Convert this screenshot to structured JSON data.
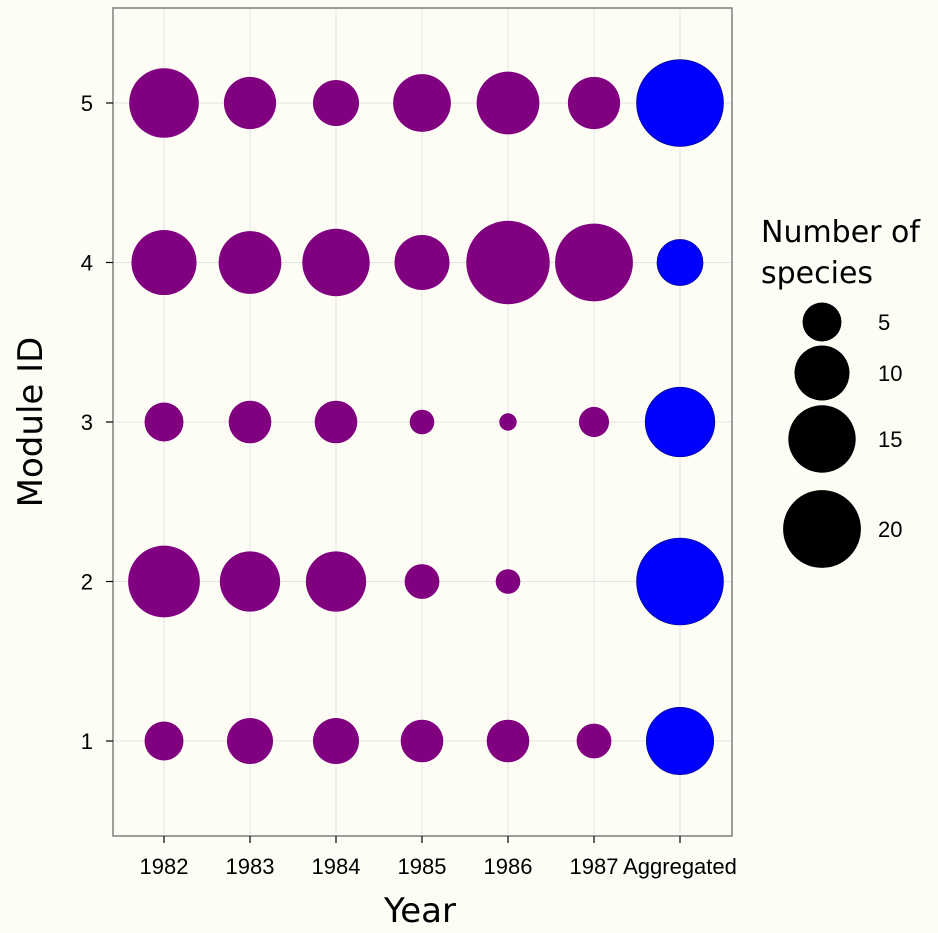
{
  "chart_data": {
    "type": "scatter",
    "title": "",
    "xlabel": "Year",
    "ylabel": "Module ID",
    "categories": [
      "1982",
      "1983",
      "1984",
      "1985",
      "1986",
      "1987",
      "Aggregated"
    ],
    "y_ticks": [
      "1",
      "2",
      "3",
      "4",
      "5"
    ],
    "ylim": [
      0.4,
      5.6
    ],
    "grid": true,
    "colors": {
      "year": "#800080",
      "aggregated": "#0000ff",
      "legend": "#000000"
    },
    "size_legend": {
      "title_lines": [
        "Number of",
        "species"
      ],
      "placement": "right",
      "values": [
        5,
        10,
        15,
        20
      ]
    },
    "points": [
      {
        "x": "1982",
        "y": 1,
        "size": 5
      },
      {
        "x": "1983",
        "y": 1,
        "size": 7
      },
      {
        "x": "1984",
        "y": 1,
        "size": 7
      },
      {
        "x": "1985",
        "y": 1,
        "size": 6
      },
      {
        "x": "1986",
        "y": 1,
        "size": 6
      },
      {
        "x": "1987",
        "y": 1,
        "size": 4
      },
      {
        "x": "Aggregated",
        "y": 1,
        "size": 15
      },
      {
        "x": "1982",
        "y": 2,
        "size": 17
      },
      {
        "x": "1983",
        "y": 2,
        "size": 12
      },
      {
        "x": "1984",
        "y": 2,
        "size": 12
      },
      {
        "x": "1985",
        "y": 2,
        "size": 4
      },
      {
        "x": "1986",
        "y": 2,
        "size": 2
      },
      {
        "x": "Aggregated",
        "y": 2,
        "size": 25
      },
      {
        "x": "1982",
        "y": 3,
        "size": 5
      },
      {
        "x": "1983",
        "y": 3,
        "size": 6
      },
      {
        "x": "1984",
        "y": 3,
        "size": 6
      },
      {
        "x": "1985",
        "y": 3,
        "size": 2
      },
      {
        "x": "1986",
        "y": 3,
        "size": 1
      },
      {
        "x": "1987",
        "y": 3,
        "size": 3
      },
      {
        "x": "Aggregated",
        "y": 3,
        "size": 16
      },
      {
        "x": "1982",
        "y": 4,
        "size": 14
      },
      {
        "x": "1983",
        "y": 4,
        "size": 13
      },
      {
        "x": "1984",
        "y": 4,
        "size": 15
      },
      {
        "x": "1985",
        "y": 4,
        "size": 10
      },
      {
        "x": "1986",
        "y": 4,
        "size": 23
      },
      {
        "x": "1987",
        "y": 4,
        "size": 20
      },
      {
        "x": "Aggregated",
        "y": 4,
        "size": 7
      },
      {
        "x": "1982",
        "y": 5,
        "size": 16
      },
      {
        "x": "1983",
        "y": 5,
        "size": 9
      },
      {
        "x": "1984",
        "y": 5,
        "size": 7
      },
      {
        "x": "1985",
        "y": 5,
        "size": 11
      },
      {
        "x": "1986",
        "y": 5,
        "size": 13
      },
      {
        "x": "1987",
        "y": 5,
        "size": 9
      },
      {
        "x": "Aggregated",
        "y": 5,
        "size": 25
      }
    ]
  }
}
